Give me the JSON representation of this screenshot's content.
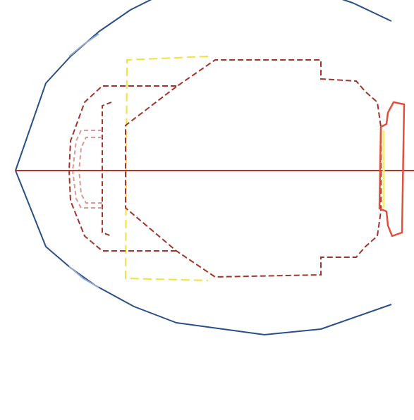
{
  "colors": {
    "background": "#ffffff",
    "outer_boundary": "#2a4f86",
    "outer_boundary_light": "#8fa9cc",
    "dashed_outline": "#a0362b",
    "dashed_light": "#d99a94",
    "yellow_outline": "#f0e23a",
    "axis": "#b3322a",
    "lens_outline": "#e0503e",
    "lens_fill": "#f4f070"
  },
  "legend": []
}
